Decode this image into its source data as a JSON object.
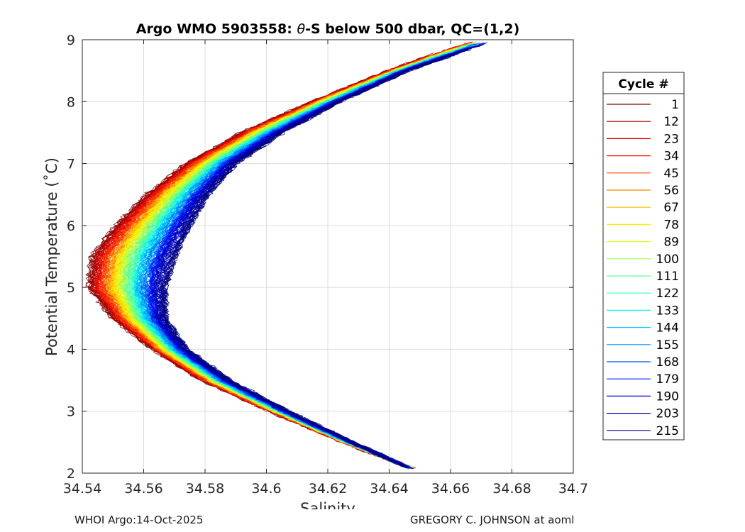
{
  "chart_data": {
    "type": "line",
    "title_prefix": "Argo WMO 5903558: ",
    "title_theta": "θ",
    "title_suffix": "-S below 500 dbar,  QC=(1,2)",
    "xlabel": "Salinity",
    "ylabel": "Potential Temperature (˚C)",
    "xlim": [
      34.54,
      34.7
    ],
    "ylim": [
      2,
      9
    ],
    "xticks": [
      34.54,
      34.56,
      34.58,
      34.6,
      34.62,
      34.64,
      34.66,
      34.68,
      34.7
    ],
    "xtick_labels": [
      "34.54",
      "34.56",
      "34.58",
      "34.6",
      "34.62",
      "34.64",
      "34.66",
      "34.68",
      "34.7"
    ],
    "yticks": [
      2,
      3,
      4,
      5,
      6,
      7,
      8,
      9
    ],
    "ytick_labels": [
      "2",
      "3",
      "4",
      "5",
      "6",
      "7",
      "8",
      "9"
    ],
    "grid": true,
    "legend_title": "Cycle #",
    "legend_position": "right-outside",
    "series": [
      {
        "name": "1",
        "color": "#800000"
      },
      {
        "name": "12",
        "color": "#a80000"
      },
      {
        "name": "23",
        "color": "#d40000"
      },
      {
        "name": "34",
        "color": "#ff1a00"
      },
      {
        "name": "45",
        "color": "#ff5000"
      },
      {
        "name": "56",
        "color": "#ff8a00"
      },
      {
        "name": "67",
        "color": "#ffc000"
      },
      {
        "name": "78",
        "color": "#ffee00"
      },
      {
        "name": "89",
        "color": "#d8ff20"
      },
      {
        "name": "100",
        "color": "#a0ff50"
      },
      {
        "name": "111",
        "color": "#60ff90"
      },
      {
        "name": "122",
        "color": "#30ffc8"
      },
      {
        "name": "133",
        "color": "#10f0f0"
      },
      {
        "name": "144",
        "color": "#00c8ff"
      },
      {
        "name": "155",
        "color": "#0090ff"
      },
      {
        "name": "168",
        "color": "#0058ff"
      },
      {
        "name": "179",
        "color": "#0020ff"
      },
      {
        "name": "190",
        "color": "#0000d8"
      },
      {
        "name": "203",
        "color": "#0000a8"
      },
      {
        "name": "215",
        "color": "#000080"
      }
    ],
    "profile_shape": {
      "description_none": "",
      "theta": [
        2.05,
        2.5,
        3.0,
        3.5,
        4.0,
        4.5,
        5.0,
        5.5,
        6.0,
        6.5,
        7.0,
        7.5,
        8.0,
        8.5,
        8.95
      ],
      "salinity_early": [
        34.649,
        34.625,
        34.601,
        34.579,
        34.563,
        34.55,
        34.542,
        34.543,
        34.551,
        34.561,
        34.574,
        34.592,
        34.615,
        34.64,
        34.665
      ],
      "salinity_late": [
        34.648,
        34.628,
        34.607,
        34.588,
        34.574,
        34.567,
        34.567,
        34.57,
        34.575,
        34.581,
        34.59,
        34.605,
        34.624,
        34.646,
        34.672
      ]
    }
  },
  "footer": {
    "left": "WHOI Argo:14-Oct-2025",
    "right": "GREGORY C. JOHNSON at aoml"
  }
}
